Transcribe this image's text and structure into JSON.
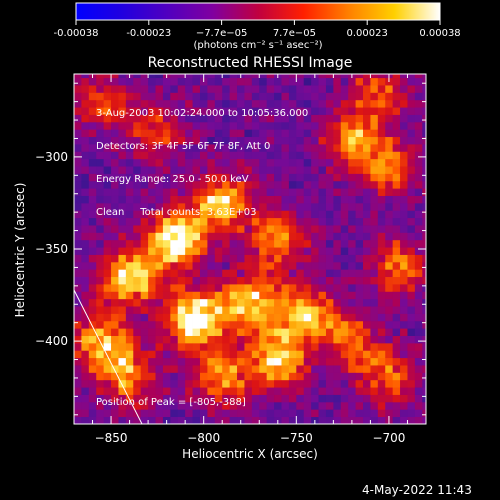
{
  "chart_data": {
    "type": "heatmap",
    "title": "Reconstructed RHESSI Image",
    "xlabel": "Heliocentric X (arcsec)",
    "ylabel": "Heliocentric Y (arcsec)",
    "xlim": [
      -870,
      -680
    ],
    "ylim": [
      -445,
      -255
    ],
    "xticks": [
      -850,
      -800,
      -750,
      -700
    ],
    "yticks": [
      -300,
      -350,
      -400
    ],
    "colorbar": {
      "ticks": [
        "-0.00038",
        "-0.00023",
        "−7.7e−05",
        "7.7e−05",
        "0.00023",
        "0.00038"
      ],
      "unit_label": "(photons cm⁻² s⁻¹ asec⁻²)",
      "colors": [
        "#0000ff",
        "#2000e0",
        "#5000c0",
        "#8000a0",
        "#c00040",
        "#ff2000",
        "#ff8000",
        "#ffd000",
        "#ffffff"
      ]
    },
    "annotations": [
      "3-Aug-2003 10:02:24.000 to 10:05:36.000",
      "Detectors: 3F 4F 5F 6F 7F 8F, Att 0",
      "Energy Range: 25.0 - 50.0 keV",
      "Clean     Total counts: 3.63E+03"
    ],
    "peak_label": "Position of Peak = [-805,-388]",
    "bright_regions": [
      {
        "x": -805,
        "y": -388,
        "intensity": 1.0
      },
      {
        "x": -815,
        "y": -345,
        "intensity": 0.9
      },
      {
        "x": -790,
        "y": -325,
        "intensity": 0.75
      },
      {
        "x": -840,
        "y": -365,
        "intensity": 0.8
      },
      {
        "x": -775,
        "y": -380,
        "intensity": 0.75
      },
      {
        "x": -760,
        "y": -410,
        "intensity": 0.7
      },
      {
        "x": -745,
        "y": -385,
        "intensity": 0.7
      },
      {
        "x": -760,
        "y": -345,
        "intensity": 0.6
      },
      {
        "x": -790,
        "y": -420,
        "intensity": 0.6
      },
      {
        "x": -720,
        "y": -290,
        "intensity": 0.6
      },
      {
        "x": -700,
        "y": -305,
        "intensity": 0.55
      },
      {
        "x": -695,
        "y": -360,
        "intensity": 0.55
      },
      {
        "x": -720,
        "y": -400,
        "intensity": 0.5
      },
      {
        "x": -700,
        "y": -420,
        "intensity": 0.5
      },
      {
        "x": -855,
        "y": -270,
        "intensity": 0.45
      },
      {
        "x": -825,
        "y": -285,
        "intensity": 0.45
      },
      {
        "x": -855,
        "y": -400,
        "intensity": 0.7
      },
      {
        "x": -840,
        "y": -420,
        "intensity": 0.6
      },
      {
        "x": -705,
        "y": -265,
        "intensity": 0.5
      }
    ]
  },
  "footer": {
    "timestamp": "4-May-2022 11:43"
  }
}
